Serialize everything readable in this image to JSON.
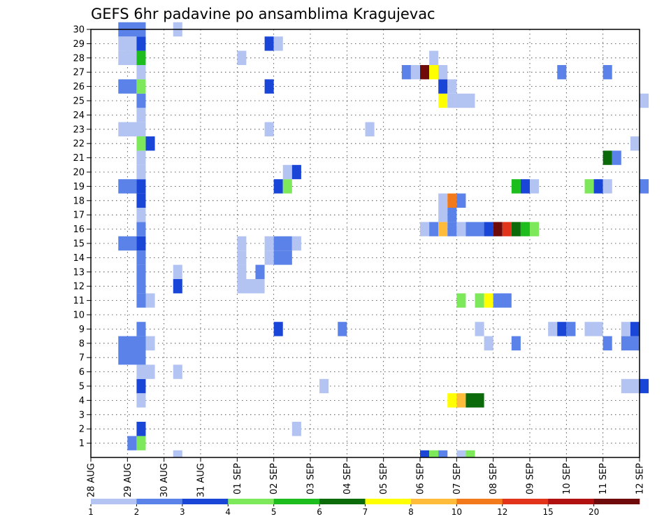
{
  "chart_data": {
    "type": "heatmap",
    "title": "GEFS 6hr padavine po ansamblima Kragujevac",
    "x_tick_labels": [
      "28 AUG",
      "29 AUG",
      "30 AUG",
      "31 AUG",
      "01 SEP",
      "02 SEP",
      "03 SEP",
      "04 SEP",
      "05 SEP",
      "06 SEP",
      "07 SEP",
      "08 SEP",
      "09 SEP",
      "10 SEP",
      "11 SEP",
      "12 SEP"
    ],
    "y_tick_labels": [
      "1",
      "2",
      "3",
      "4",
      "5",
      "6",
      "7",
      "8",
      "9",
      "10",
      "11",
      "12",
      "13",
      "14",
      "15",
      "16",
      "17",
      "18",
      "19",
      "20",
      "21",
      "22",
      "23",
      "24",
      "25",
      "26",
      "27",
      "28",
      "29",
      "30"
    ],
    "xlim": [
      "28 AUG 00Z",
      "12 SEP 00Z"
    ],
    "ylim": [
      0,
      30
    ],
    "step_hours": 6,
    "grid": true,
    "colorbar": {
      "boundaries": [
        1,
        2,
        3,
        4,
        5,
        6,
        7,
        8,
        10,
        12,
        15,
        20
      ],
      "labels": [
        "1",
        "2",
        "3",
        "4",
        "5",
        "6",
        "7",
        "8",
        "10",
        "12",
        "15",
        "20"
      ],
      "colors": [
        "#b3c4f2",
        "#5a82e8",
        "#1a46d8",
        "#7ce85a",
        "#1ebd1e",
        "#0b6b0b",
        "#ffff00",
        "#ffbb3a",
        "#f27a1a",
        "#e2341a",
        "#b01010",
        "#6e0a0a"
      ]
    },
    "cells_note": "member, start time, end time (6-h steps), precipitation class index into colorbar.colors",
    "cells": [
      {
        "member": 1,
        "from": "29 AUG 00Z",
        "to": "29 AUG 06Z",
        "class": 1
      },
      {
        "member": 1,
        "from": "29 AUG 06Z",
        "to": "29 AUG 12Z",
        "class": 3
      },
      {
        "member": 2,
        "from": "29 AUG 06Z",
        "to": "29 AUG 12Z",
        "class": 2
      },
      {
        "member": 2,
        "from": "02 SEP 12Z",
        "to": "02 SEP 18Z",
        "class": 0
      },
      {
        "member": 4,
        "from": "29 AUG 06Z",
        "to": "29 AUG 12Z",
        "class": 0
      },
      {
        "member": 4,
        "from": "06 SEP 18Z",
        "to": "07 SEP 00Z",
        "class": 6
      },
      {
        "member": 4,
        "from": "07 SEP 00Z",
        "to": "07 SEP 06Z",
        "class": 7
      },
      {
        "member": 4,
        "from": "07 SEP 06Z",
        "to": "07 SEP 18Z",
        "class": 5
      },
      {
        "member": 5,
        "from": "29 AUG 06Z",
        "to": "29 AUG 12Z",
        "class": 2
      },
      {
        "member": 5,
        "from": "03 SEP 06Z",
        "to": "03 SEP 12Z",
        "class": 0
      },
      {
        "member": 5,
        "from": "11 SEP 12Z",
        "to": "12 SEP 00Z",
        "class": 0
      },
      {
        "member": 5,
        "from": "12 SEP 00Z",
        "to": "12 SEP 06Z",
        "class": 2
      },
      {
        "member": 6,
        "from": "29 AUG 06Z",
        "to": "29 AUG 18Z",
        "class": 0
      },
      {
        "member": 6,
        "from": "30 AUG 06Z",
        "to": "30 AUG 12Z",
        "class": 0
      },
      {
        "member": 7,
        "from": "28 AUG 18Z",
        "to": "29 AUG 12Z",
        "class": 1
      },
      {
        "member": 8,
        "from": "28 AUG 18Z",
        "to": "29 AUG 12Z",
        "class": 1
      },
      {
        "member": 8,
        "from": "29 AUG 12Z",
        "to": "29 AUG 18Z",
        "class": 0
      },
      {
        "member": 8,
        "from": "07 SEP 18Z",
        "to": "08 SEP 00Z",
        "class": 0
      },
      {
        "member": 8,
        "from": "08 SEP 12Z",
        "to": "08 SEP 18Z",
        "class": 1
      },
      {
        "member": 8,
        "from": "11 SEP 00Z",
        "to": "11 SEP 06Z",
        "class": 1
      },
      {
        "member": 8,
        "from": "11 SEP 12Z",
        "to": "12 SEP 00Z",
        "class": 1
      },
      {
        "member": 9,
        "from": "29 AUG 06Z",
        "to": "29 AUG 12Z",
        "class": 1
      },
      {
        "member": 9,
        "from": "02 SEP 00Z",
        "to": "02 SEP 06Z",
        "class": 2
      },
      {
        "member": 9,
        "from": "03 SEP 18Z",
        "to": "04 SEP 00Z",
        "class": 1
      },
      {
        "member": 9,
        "from": "07 SEP 12Z",
        "to": "07 SEP 18Z",
        "class": 0
      },
      {
        "member": 9,
        "from": "09 SEP 12Z",
        "to": "09 SEP 18Z",
        "class": 0
      },
      {
        "member": 9,
        "from": "09 SEP 18Z",
        "to": "10 SEP 00Z",
        "class": 2
      },
      {
        "member": 9,
        "from": "10 SEP 00Z",
        "to": "10 SEP 06Z",
        "class": 1
      },
      {
        "member": 9,
        "from": "10 SEP 12Z",
        "to": "11 SEP 00Z",
        "class": 0
      },
      {
        "member": 9,
        "from": "11 SEP 12Z",
        "to": "11 SEP 18Z",
        "class": 0
      },
      {
        "member": 9,
        "from": "11 SEP 18Z",
        "to": "12 SEP 00Z",
        "class": 2
      },
      {
        "member": 11,
        "from": "29 AUG 06Z",
        "to": "29 AUG 12Z",
        "class": 1
      },
      {
        "member": 11,
        "from": "29 AUG 12Z",
        "to": "29 AUG 18Z",
        "class": 0
      },
      {
        "member": 11,
        "from": "07 SEP 00Z",
        "to": "07 SEP 06Z",
        "class": 3
      },
      {
        "member": 11,
        "from": "07 SEP 12Z",
        "to": "07 SEP 18Z",
        "class": 3
      },
      {
        "member": 11,
        "from": "07 SEP 18Z",
        "to": "08 SEP 00Z",
        "class": 6
      },
      {
        "member": 11,
        "from": "08 SEP 00Z",
        "to": "08 SEP 12Z",
        "class": 1
      },
      {
        "member": 12,
        "from": "29 AUG 06Z",
        "to": "29 AUG 12Z",
        "class": 1
      },
      {
        "member": 12,
        "from": "30 AUG 06Z",
        "to": "30 AUG 12Z",
        "class": 2
      },
      {
        "member": 12,
        "from": "01 SEP 00Z",
        "to": "01 SEP 18Z",
        "class": 0
      },
      {
        "member": 13,
        "from": "29 AUG 06Z",
        "to": "29 AUG 12Z",
        "class": 1
      },
      {
        "member": 13,
        "from": "30 AUG 06Z",
        "to": "30 AUG 12Z",
        "class": 0
      },
      {
        "member": 13,
        "from": "01 SEP 00Z",
        "to": "01 SEP 06Z",
        "class": 0
      },
      {
        "member": 13,
        "from": "01 SEP 12Z",
        "to": "01 SEP 18Z",
        "class": 1
      },
      {
        "member": 14,
        "from": "29 AUG 06Z",
        "to": "29 AUG 12Z",
        "class": 1
      },
      {
        "member": 14,
        "from": "01 SEP 00Z",
        "to": "01 SEP 06Z",
        "class": 0
      },
      {
        "member": 14,
        "from": "01 SEP 18Z",
        "to": "02 SEP 00Z",
        "class": 0
      },
      {
        "member": 14,
        "from": "02 SEP 00Z",
        "to": "02 SEP 12Z",
        "class": 1
      },
      {
        "member": 15,
        "from": "28 AUG 18Z",
        "to": "29 AUG 06Z",
        "class": 1
      },
      {
        "member": 15,
        "from": "29 AUG 06Z",
        "to": "29 AUG 12Z",
        "class": 2
      },
      {
        "member": 15,
        "from": "01 SEP 00Z",
        "to": "01 SEP 06Z",
        "class": 0
      },
      {
        "member": 15,
        "from": "01 SEP 18Z",
        "to": "02 SEP 00Z",
        "class": 0
      },
      {
        "member": 15,
        "from": "02 SEP 00Z",
        "to": "02 SEP 12Z",
        "class": 1
      },
      {
        "member": 15,
        "from": "02 SEP 12Z",
        "to": "02 SEP 18Z",
        "class": 0
      },
      {
        "member": 16,
        "from": "29 AUG 06Z",
        "to": "29 AUG 12Z",
        "class": 1
      },
      {
        "member": 16,
        "from": "06 SEP 00Z",
        "to": "06 SEP 06Z",
        "class": 0
      },
      {
        "member": 16,
        "from": "06 SEP 06Z",
        "to": "06 SEP 12Z",
        "class": 1
      },
      {
        "member": 16,
        "from": "06 SEP 12Z",
        "to": "06 SEP 18Z",
        "class": 7
      },
      {
        "member": 16,
        "from": "06 SEP 18Z",
        "to": "07 SEP 00Z",
        "class": 1
      },
      {
        "member": 16,
        "from": "07 SEP 00Z",
        "to": "07 SEP 06Z",
        "class": 0
      },
      {
        "member": 16,
        "from": "07 SEP 06Z",
        "to": "07 SEP 18Z",
        "class": 1
      },
      {
        "member": 16,
        "from": "07 SEP 18Z",
        "to": "08 SEP 00Z",
        "class": 2
      },
      {
        "member": 16,
        "from": "08 SEP 00Z",
        "to": "08 SEP 06Z",
        "class": 11
      },
      {
        "member": 16,
        "from": "08 SEP 06Z",
        "to": "08 SEP 12Z",
        "class": 9
      },
      {
        "member": 16,
        "from": "08 SEP 12Z",
        "to": "08 SEP 18Z",
        "class": 5
      },
      {
        "member": 16,
        "from": "08 SEP 18Z",
        "to": "09 SEP 00Z",
        "class": 4
      },
      {
        "member": 16,
        "from": "09 SEP 00Z",
        "to": "09 SEP 06Z",
        "class": 3
      },
      {
        "member": 17,
        "from": "29 AUG 06Z",
        "to": "29 AUG 12Z",
        "class": 0
      },
      {
        "member": 17,
        "from": "06 SEP 12Z",
        "to": "06 SEP 18Z",
        "class": 0
      },
      {
        "member": 17,
        "from": "06 SEP 18Z",
        "to": "07 SEP 00Z",
        "class": 1
      },
      {
        "member": 18,
        "from": "29 AUG 06Z",
        "to": "29 AUG 12Z",
        "class": 2
      },
      {
        "member": 18,
        "from": "06 SEP 12Z",
        "to": "06 SEP 18Z",
        "class": 0
      },
      {
        "member": 18,
        "from": "06 SEP 18Z",
        "to": "07 SEP 00Z",
        "class": 8
      },
      {
        "member": 18,
        "from": "07 SEP 00Z",
        "to": "07 SEP 06Z",
        "class": 1
      },
      {
        "member": 19,
        "from": "28 AUG 18Z",
        "to": "29 AUG 06Z",
        "class": 1
      },
      {
        "member": 19,
        "from": "29 AUG 06Z",
        "to": "29 AUG 12Z",
        "class": 2
      },
      {
        "member": 19,
        "from": "02 SEP 00Z",
        "to": "02 SEP 06Z",
        "class": 2
      },
      {
        "member": 19,
        "from": "02 SEP 06Z",
        "to": "02 SEP 12Z",
        "class": 3
      },
      {
        "member": 19,
        "from": "08 SEP 12Z",
        "to": "08 SEP 18Z",
        "class": 4
      },
      {
        "member": 19,
        "from": "08 SEP 18Z",
        "to": "09 SEP 00Z",
        "class": 2
      },
      {
        "member": 19,
        "from": "09 SEP 00Z",
        "to": "09 SEP 06Z",
        "class": 0
      },
      {
        "member": 19,
        "from": "10 SEP 12Z",
        "to": "10 SEP 18Z",
        "class": 3
      },
      {
        "member": 19,
        "from": "10 SEP 18Z",
        "to": "11 SEP 00Z",
        "class": 2
      },
      {
        "member": 19,
        "from": "11 SEP 00Z",
        "to": "11 SEP 06Z",
        "class": 0
      },
      {
        "member": 19,
        "from": "12 SEP 00Z",
        "to": "12 SEP 06Z",
        "class": 1
      },
      {
        "member": 20,
        "from": "29 AUG 06Z",
        "to": "29 AUG 12Z",
        "class": 0
      },
      {
        "member": 20,
        "from": "02 SEP 06Z",
        "to": "02 SEP 12Z",
        "class": 0
      },
      {
        "member": 20,
        "from": "02 SEP 12Z",
        "to": "02 SEP 18Z",
        "class": 2
      },
      {
        "member": 21,
        "from": "29 AUG 06Z",
        "to": "29 AUG 12Z",
        "class": 0
      },
      {
        "member": 21,
        "from": "11 SEP 00Z",
        "to": "11 SEP 06Z",
        "class": 5
      },
      {
        "member": 21,
        "from": "11 SEP 06Z",
        "to": "11 SEP 12Z",
        "class": 1
      },
      {
        "member": 22,
        "from": "29 AUG 06Z",
        "to": "29 AUG 12Z",
        "class": 3
      },
      {
        "member": 22,
        "from": "29 AUG 12Z",
        "to": "29 AUG 18Z",
        "class": 2
      },
      {
        "member": 22,
        "from": "11 SEP 18Z",
        "to": "12 SEP 00Z",
        "class": 0
      },
      {
        "member": 23,
        "from": "28 AUG 18Z",
        "to": "29 AUG 12Z",
        "class": 0
      },
      {
        "member": 23,
        "from": "01 SEP 18Z",
        "to": "02 SEP 00Z",
        "class": 0
      },
      {
        "member": 23,
        "from": "04 SEP 12Z",
        "to": "04 SEP 18Z",
        "class": 0
      },
      {
        "member": 24,
        "from": "29 AUG 06Z",
        "to": "29 AUG 12Z",
        "class": 0
      },
      {
        "member": 25,
        "from": "29 AUG 06Z",
        "to": "29 AUG 12Z",
        "class": 1
      },
      {
        "member": 25,
        "from": "06 SEP 12Z",
        "to": "06 SEP 18Z",
        "class": 6
      },
      {
        "member": 25,
        "from": "06 SEP 18Z",
        "to": "07 SEP 12Z",
        "class": 0
      },
      {
        "member": 25,
        "from": "12 SEP 00Z",
        "to": "12 SEP 06Z",
        "class": 0
      },
      {
        "member": 26,
        "from": "28 AUG 18Z",
        "to": "29 AUG 06Z",
        "class": 1
      },
      {
        "member": 26,
        "from": "29 AUG 06Z",
        "to": "29 AUG 12Z",
        "class": 3
      },
      {
        "member": 26,
        "from": "01 SEP 18Z",
        "to": "02 SEP 00Z",
        "class": 2
      },
      {
        "member": 26,
        "from": "06 SEP 12Z",
        "to": "06 SEP 18Z",
        "class": 2
      },
      {
        "member": 26,
        "from": "06 SEP 18Z",
        "to": "07 SEP 00Z",
        "class": 0
      },
      {
        "member": 27,
        "from": "29 AUG 06Z",
        "to": "29 AUG 12Z",
        "class": 0
      },
      {
        "member": 27,
        "from": "05 SEP 12Z",
        "to": "05 SEP 18Z",
        "class": 1
      },
      {
        "member": 27,
        "from": "05 SEP 18Z",
        "to": "06 SEP 00Z",
        "class": 0
      },
      {
        "member": 27,
        "from": "06 SEP 00Z",
        "to": "06 SEP 06Z",
        "class": 11
      },
      {
        "member": 27,
        "from": "06 SEP 06Z",
        "to": "06 SEP 12Z",
        "class": 6
      },
      {
        "member": 27,
        "from": "06 SEP 12Z",
        "to": "06 SEP 18Z",
        "class": 0
      },
      {
        "member": 27,
        "from": "09 SEP 18Z",
        "to": "10 SEP 00Z",
        "class": 1
      },
      {
        "member": 27,
        "from": "11 SEP 00Z",
        "to": "11 SEP 06Z",
        "class": 1
      },
      {
        "member": 28,
        "from": "28 AUG 18Z",
        "to": "29 AUG 06Z",
        "class": 0
      },
      {
        "member": 28,
        "from": "29 AUG 06Z",
        "to": "29 AUG 12Z",
        "class": 4
      },
      {
        "member": 28,
        "from": "01 SEP 00Z",
        "to": "01 SEP 06Z",
        "class": 0
      },
      {
        "member": 28,
        "from": "06 SEP 06Z",
        "to": "06 SEP 12Z",
        "class": 0
      },
      {
        "member": 29,
        "from": "28 AUG 18Z",
        "to": "29 AUG 06Z",
        "class": 0
      },
      {
        "member": 29,
        "from": "29 AUG 06Z",
        "to": "29 AUG 12Z",
        "class": 2
      },
      {
        "member": 29,
        "from": "01 SEP 18Z",
        "to": "02 SEP 00Z",
        "class": 2
      },
      {
        "member": 29,
        "from": "02 SEP 00Z",
        "to": "02 SEP 06Z",
        "class": 0
      },
      {
        "member": 30,
        "from": "28 AUG 18Z",
        "to": "29 AUG 12Z",
        "class": 1
      },
      {
        "member": 30,
        "from": "30 AUG 06Z",
        "to": "30 AUG 12Z",
        "class": 0
      },
      {
        "member": 0,
        "from": "30 AUG 06Z",
        "to": "30 AUG 12Z",
        "class": 0
      },
      {
        "member": 0,
        "from": "06 SEP 00Z",
        "to": "06 SEP 06Z",
        "class": 2
      },
      {
        "member": 0,
        "from": "06 SEP 06Z",
        "to": "06 SEP 12Z",
        "class": 3
      },
      {
        "member": 0,
        "from": "06 SEP 12Z",
        "to": "06 SEP 18Z",
        "class": 1
      },
      {
        "member": 0,
        "from": "07 SEP 00Z",
        "to": "07 SEP 06Z",
        "class": 0
      },
      {
        "member": 0,
        "from": "07 SEP 06Z",
        "to": "07 SEP 12Z",
        "class": 3
      }
    ]
  }
}
